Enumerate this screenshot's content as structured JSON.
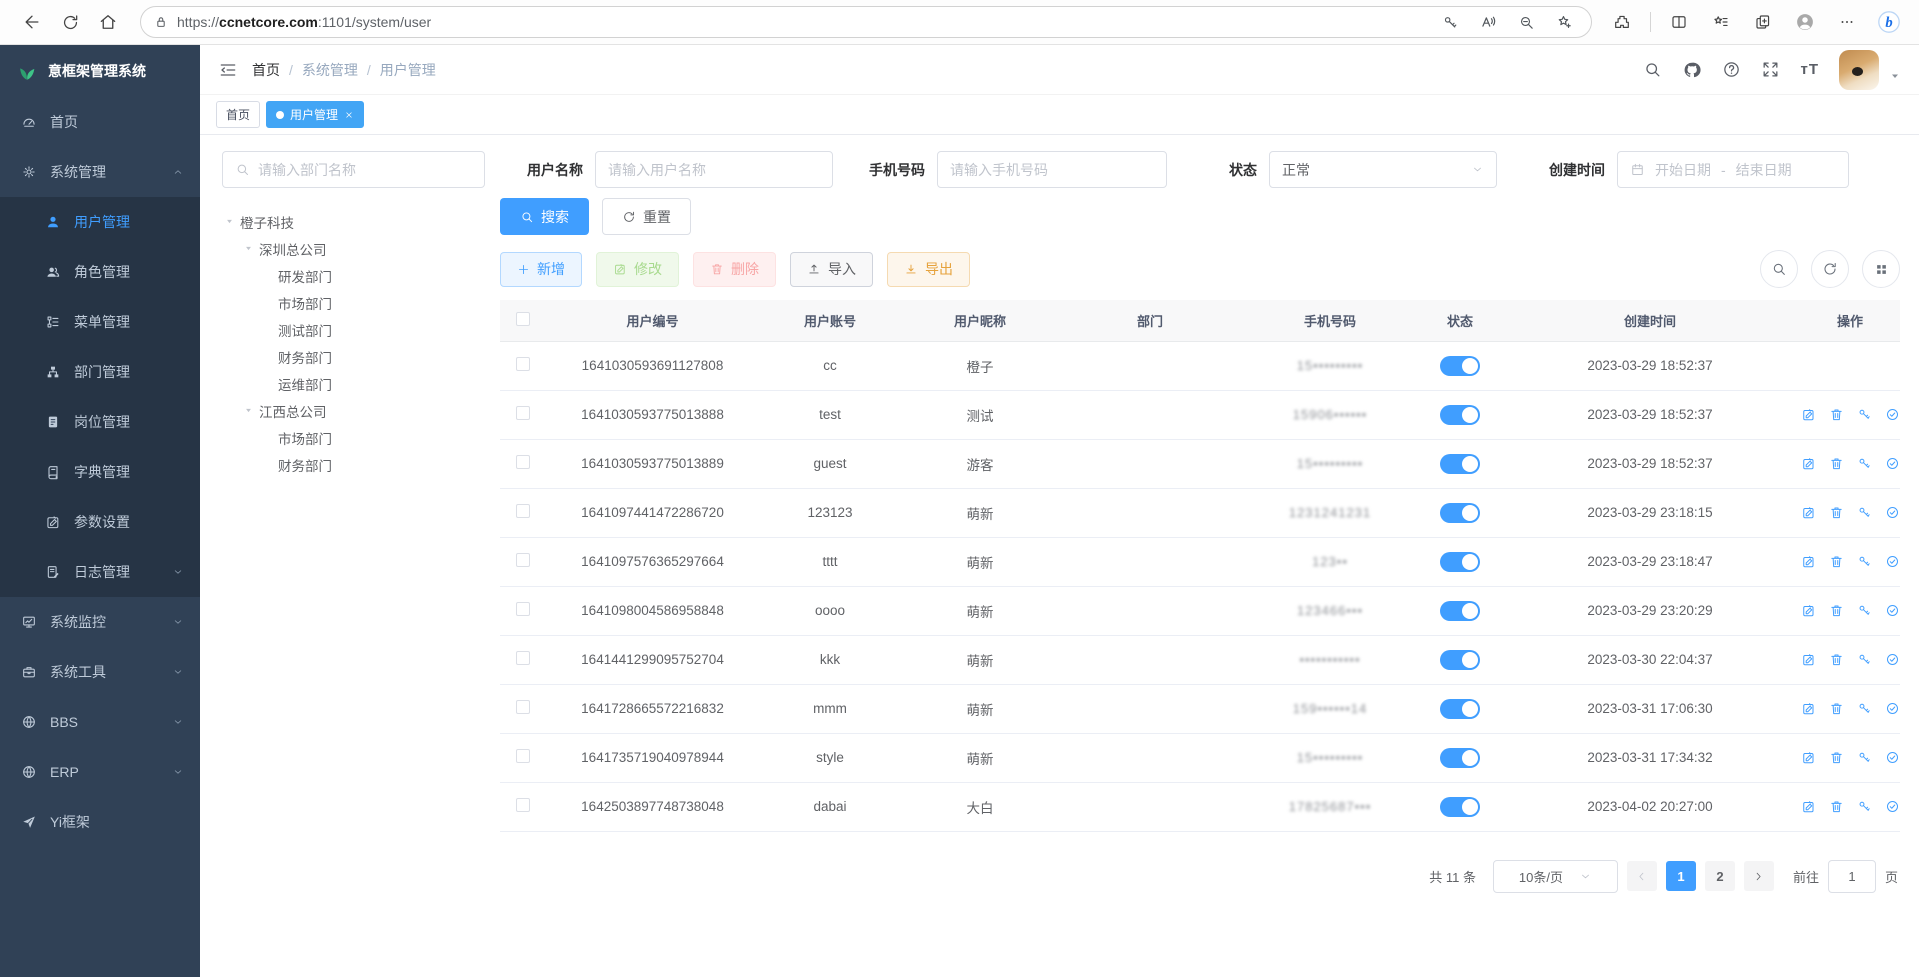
{
  "browser": {
    "url_scheme": "https://",
    "url_domain": "ccnetcore.com",
    "url_rest": ":1101/system/user"
  },
  "header": {
    "logo_title": "意框架管理系统",
    "breadcrumb": [
      "首页",
      "系统管理",
      "用户管理"
    ],
    "font_size_icon_label": "тT"
  },
  "tabs": [
    {
      "key": "home",
      "label": "首页",
      "active": false,
      "closable": false
    },
    {
      "key": "user-mgmt",
      "label": "用户管理",
      "active": true,
      "closable": true
    }
  ],
  "sidebar": {
    "items": [
      {
        "key": "home",
        "label": "首页",
        "icon": "dashboard-icon",
        "level": 0
      },
      {
        "key": "system-mgmt",
        "label": "系统管理",
        "icon": "gear-icon",
        "level": 0,
        "caret": "up"
      },
      {
        "key": "user-mgmt",
        "label": "用户管理",
        "icon": "user-icon",
        "level": 1,
        "active": true
      },
      {
        "key": "role-mgmt",
        "label": "角色管理",
        "icon": "role-icon",
        "level": 1
      },
      {
        "key": "menu-mgmt",
        "label": "菜单管理",
        "icon": "menu-tree-icon",
        "level": 1
      },
      {
        "key": "dept-mgmt",
        "label": "部门管理",
        "icon": "dept-tree-icon",
        "level": 1
      },
      {
        "key": "post-mgmt",
        "label": "岗位管理",
        "icon": "post-icon",
        "level": 1
      },
      {
        "key": "dict-mgmt",
        "label": "字典管理",
        "icon": "dict-icon",
        "level": 1
      },
      {
        "key": "param-settings",
        "label": "参数设置",
        "icon": "edit-square-icon",
        "level": 1
      },
      {
        "key": "log-mgmt",
        "label": "日志管理",
        "icon": "log-icon",
        "level": 1,
        "caret": "down"
      },
      {
        "key": "system-monitor",
        "label": "系统监控",
        "icon": "monitor-icon",
        "level": 0,
        "caret": "down"
      },
      {
        "key": "system-tools",
        "label": "系统工具",
        "icon": "toolbox-icon",
        "level": 0,
        "caret": "down"
      },
      {
        "key": "bbs",
        "label": "BBS",
        "icon": "globe-icon",
        "level": 0,
        "caret": "down"
      },
      {
        "key": "erp",
        "label": "ERP",
        "icon": "globe-icon",
        "level": 0,
        "caret": "down"
      },
      {
        "key": "yi-frame",
        "label": "Yi框架",
        "icon": "paper-plane-icon",
        "level": 0
      }
    ]
  },
  "filters": {
    "dept_search_placeholder": "请输入部门名称",
    "username_label": "用户名称",
    "username_placeholder": "请输入用户名称",
    "phone_label": "手机号码",
    "phone_placeholder": "请输入手机号码",
    "status_label": "状态",
    "status_value": "正常",
    "created_label": "创建时间",
    "date_start_placeholder": "开始日期",
    "date_separator": "-",
    "date_end_placeholder": "结束日期",
    "search_button": "搜索",
    "reset_button": "重置"
  },
  "tree": {
    "nodes": [
      {
        "label": "橙子科技",
        "depth": 0,
        "expandable": true
      },
      {
        "label": "深圳总公司",
        "depth": 1,
        "expandable": true
      },
      {
        "label": "研发部门",
        "depth": 2,
        "expandable": false
      },
      {
        "label": "市场部门",
        "depth": 2,
        "expandable": false
      },
      {
        "label": "测试部门",
        "depth": 2,
        "expandable": false
      },
      {
        "label": "财务部门",
        "depth": 2,
        "expandable": false
      },
      {
        "label": "运维部门",
        "depth": 2,
        "expandable": false
      },
      {
        "label": "江西总公司",
        "depth": 1,
        "expandable": true
      },
      {
        "label": "市场部门",
        "depth": 2,
        "expandable": false
      },
      {
        "label": "财务部门",
        "depth": 2,
        "expandable": false
      }
    ]
  },
  "toolbar": {
    "add": "新增",
    "edit": "修改",
    "delete": "删除",
    "import": "导入",
    "export": "导出"
  },
  "table": {
    "columns": [
      "用户编号",
      "用户账号",
      "用户昵称",
      "部门",
      "手机号码",
      "状态",
      "创建时间",
      "操作"
    ],
    "rows": [
      {
        "id": "1641030593691127808",
        "account": "cc",
        "nickname": "橙子",
        "dept": "",
        "phone": "15•••••••••",
        "status": true,
        "created": "2023-03-29 18:52:37",
        "actions": false
      },
      {
        "id": "1641030593775013888",
        "account": "test",
        "nickname": "测试",
        "dept": "",
        "phone": "15906••••••",
        "status": true,
        "created": "2023-03-29 18:52:37",
        "actions": true
      },
      {
        "id": "1641030593775013889",
        "account": "guest",
        "nickname": "游客",
        "dept": "",
        "phone": "15•••••••••",
        "status": true,
        "created": "2023-03-29 18:52:37",
        "actions": true
      },
      {
        "id": "1641097441472286720",
        "account": "123123",
        "nickname": "萌新",
        "dept": "",
        "phone": "1231241231",
        "status": true,
        "created": "2023-03-29 23:18:15",
        "actions": true
      },
      {
        "id": "1641097576365297664",
        "account": "tttt",
        "nickname": "萌新",
        "dept": "",
        "phone": "123••",
        "status": true,
        "created": "2023-03-29 23:18:47",
        "actions": true
      },
      {
        "id": "1641098004586958848",
        "account": "oooo",
        "nickname": "萌新",
        "dept": "",
        "phone": "123466•••",
        "status": true,
        "created": "2023-03-29 23:20:29",
        "actions": true
      },
      {
        "id": "1641441299095752704",
        "account": "kkk",
        "nickname": "萌新",
        "dept": "",
        "phone": "•••••••••••",
        "status": true,
        "created": "2023-03-30 22:04:37",
        "actions": true
      },
      {
        "id": "1641728665572216832",
        "account": "mmm",
        "nickname": "萌新",
        "dept": "",
        "phone": "159••••••14",
        "status": true,
        "created": "2023-03-31 17:06:30",
        "actions": true
      },
      {
        "id": "1641735719040978944",
        "account": "style",
        "nickname": "萌新",
        "dept": "",
        "phone": "15•••••••••",
        "status": true,
        "created": "2023-03-31 17:34:32",
        "actions": true
      },
      {
        "id": "1642503897748738048",
        "account": "dabai",
        "nickname": "大白",
        "dept": "",
        "phone": "17825687•••",
        "status": true,
        "created": "2023-04-02 20:27:00",
        "actions": true
      }
    ]
  },
  "pagination": {
    "total": "共 11 条",
    "page_size": "10条/页",
    "pages": [
      "1",
      "2"
    ],
    "active_page": "1",
    "goto_label": "前往",
    "goto_value": "1",
    "page_unit": "页"
  },
  "colors": {
    "accent": "#409eff",
    "tab_active": "#42a5f5",
    "sidebar_bg": "#304156",
    "sidebar_sub_bg": "#263445",
    "toggle_on": "#409eff"
  }
}
